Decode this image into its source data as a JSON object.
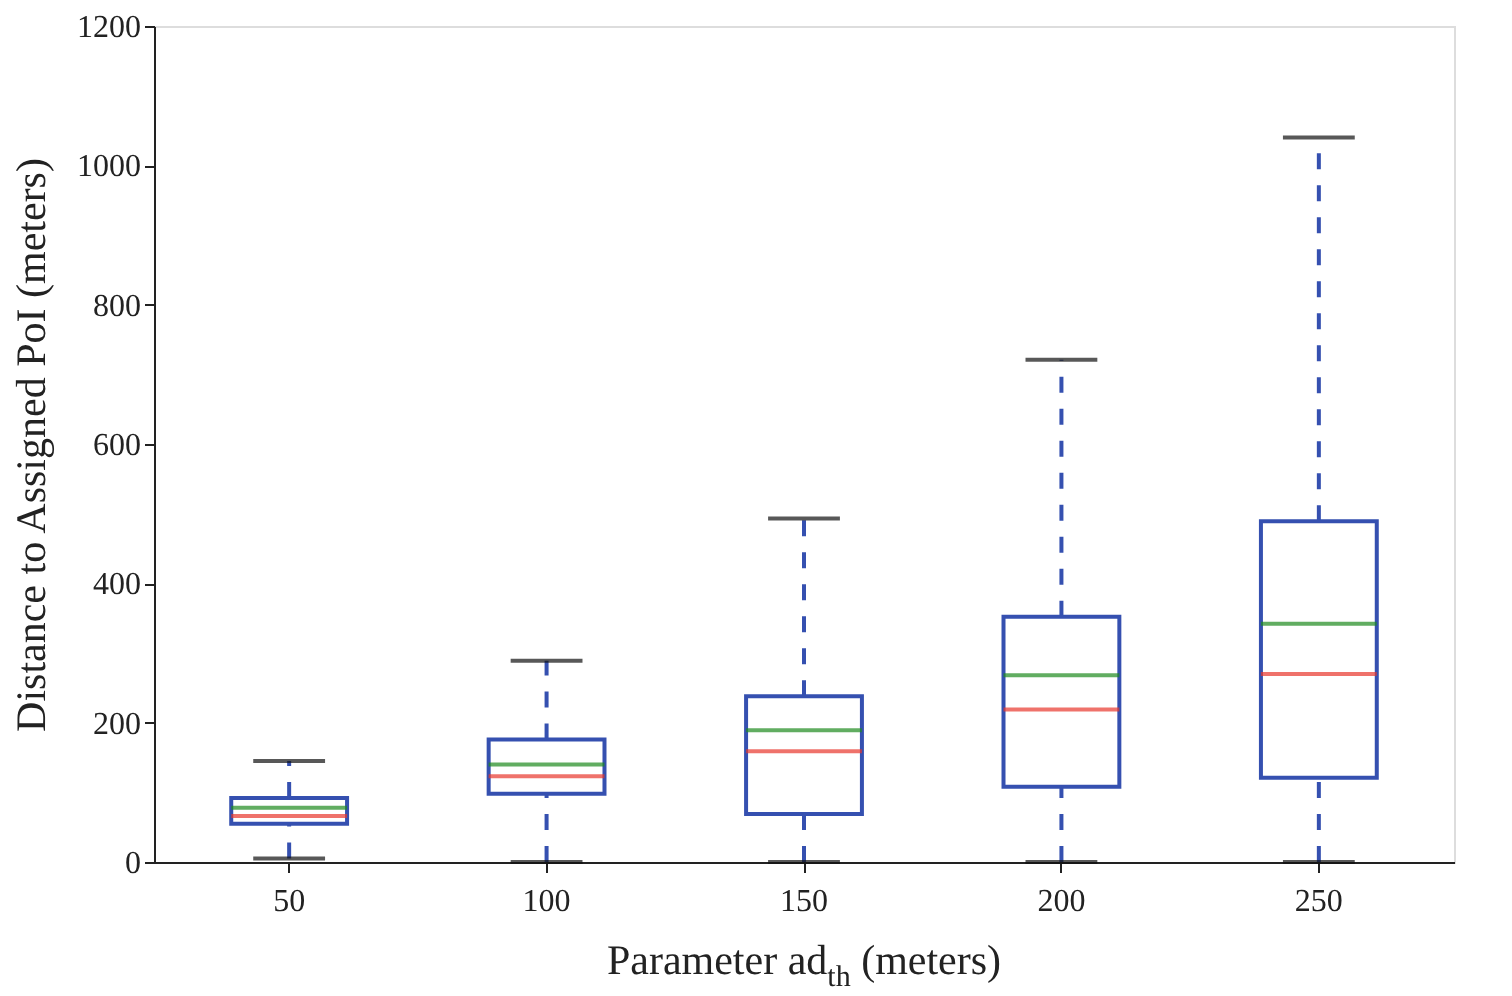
{
  "chart_data": {
    "type": "box",
    "xlabel": "Parameter ad$_{th}$ (meters)",
    "ylabel": "Distance to Assigned PoI (meters)",
    "categories": [
      "50",
      "100",
      "150",
      "200",
      "250"
    ],
    "series": [
      {
        "color": "#3550b0",
        "boxes": [
          {
            "low": 5,
            "q1": 55,
            "median": 66,
            "mean": 78,
            "q3": 92,
            "high": 145
          },
          {
            "low": 0,
            "q1": 98,
            "median": 123,
            "mean": 140,
            "q3": 176,
            "high": 289
          },
          {
            "low": 0,
            "q1": 69,
            "median": 159,
            "mean": 189,
            "q3": 238,
            "high": 493
          },
          {
            "low": 0,
            "q1": 108,
            "median": 219,
            "mean": 268,
            "q3": 352,
            "high": 721
          },
          {
            "low": 0,
            "q1": 121,
            "median": 270,
            "mean": 342,
            "q3": 489,
            "high": 1040
          }
        ]
      }
    ],
    "ylim": [
      0,
      1200
    ],
    "yticks": [
      0,
      200,
      400,
      600,
      800,
      1000,
      1200
    ],
    "grid": false
  }
}
